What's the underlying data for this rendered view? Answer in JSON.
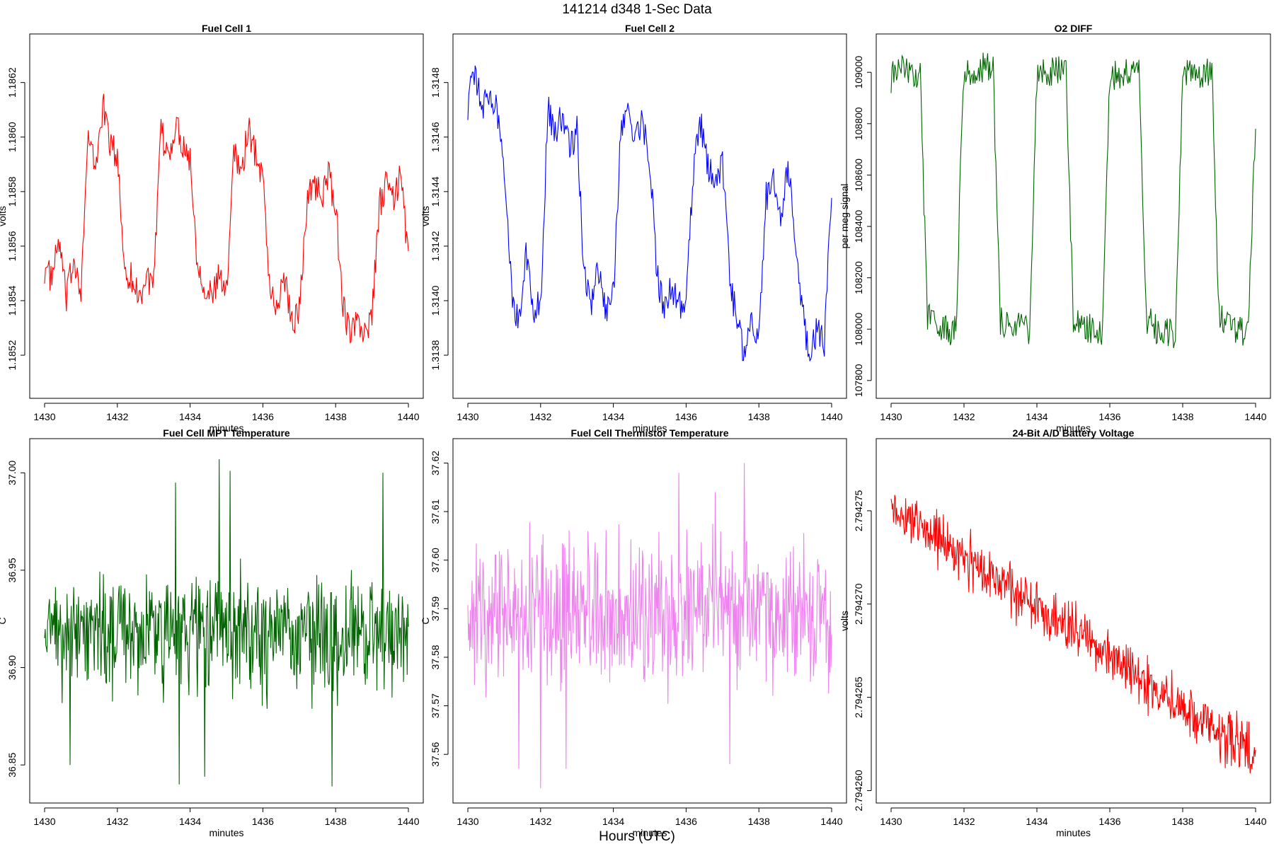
{
  "figure": {
    "title": "141214   d348   1-Sec Data",
    "footer": "Hours (UTC)"
  },
  "chart_data": [
    {
      "type": "line",
      "title": "Fuel Cell 1",
      "xlabel": "minutes",
      "ylabel": "volts",
      "color": "#ff0000",
      "xlim": [
        1430,
        1440
      ],
      "ylim": [
        1.18506,
        1.18636
      ],
      "xticks": [
        "1430",
        "1432",
        "1434",
        "1436",
        "1438",
        "1440"
      ],
      "yticks": [
        "1.1852",
        "1.1854",
        "1.1856",
        "1.1858",
        "1.1860",
        "1.1862"
      ],
      "x": [
        1430.0,
        1430.2,
        1430.4,
        1430.6,
        1430.8,
        1431.0,
        1431.2,
        1431.4,
        1431.6,
        1431.8,
        1432.0,
        1432.2,
        1432.4,
        1432.6,
        1432.8,
        1433.0,
        1433.2,
        1433.4,
        1433.6,
        1433.8,
        1434.0,
        1434.2,
        1434.4,
        1434.6,
        1434.8,
        1435.0,
        1435.2,
        1435.4,
        1435.6,
        1435.8,
        1436.0,
        1436.2,
        1436.4,
        1436.6,
        1436.8,
        1437.0,
        1437.2,
        1437.4,
        1437.6,
        1437.8,
        1438.0,
        1438.2,
        1438.4,
        1438.6,
        1438.8,
        1439.0,
        1439.2,
        1439.4,
        1439.6,
        1439.8,
        1440.0
      ],
      "y": [
        1.18552,
        1.18548,
        1.18562,
        1.1854,
        1.18556,
        1.18545,
        1.186,
        1.18588,
        1.18612,
        1.18598,
        1.18592,
        1.18552,
        1.18548,
        1.18541,
        1.18549,
        1.18545,
        1.18602,
        1.18592,
        1.18605,
        1.18598,
        1.18592,
        1.18554,
        1.18546,
        1.18541,
        1.18549,
        1.18542,
        1.18598,
        1.18586,
        1.18603,
        1.18594,
        1.18586,
        1.18543,
        1.18537,
        1.18549,
        1.18532,
        1.18536,
        1.18575,
        1.18584,
        1.18578,
        1.18586,
        1.18574,
        1.18539,
        1.18527,
        1.18532,
        1.18528,
        1.18534,
        1.18575,
        1.18583,
        1.18577,
        1.18586,
        1.18555
      ]
    },
    {
      "type": "line",
      "title": "Fuel Cell 2",
      "xlabel": "minutes",
      "ylabel": "volts",
      "color": "#0000ff",
      "xlim": [
        1430,
        1440
      ],
      "ylim": [
        1.31366,
        1.31496
      ],
      "xticks": [
        "1430",
        "1432",
        "1434",
        "1436",
        "1438",
        "1440"
      ],
      "yticks": [
        "1.3138",
        "1.3140",
        "1.3142",
        "1.3144",
        "1.3146",
        "1.3148"
      ],
      "x": [
        1430.0,
        1430.2,
        1430.4,
        1430.6,
        1430.8,
        1431.0,
        1431.2,
        1431.4,
        1431.6,
        1431.8,
        1432.0,
        1432.2,
        1432.4,
        1432.6,
        1432.8,
        1433.0,
        1433.2,
        1433.4,
        1433.6,
        1433.8,
        1434.0,
        1434.2,
        1434.4,
        1434.6,
        1434.8,
        1435.0,
        1435.2,
        1435.4,
        1435.6,
        1435.8,
        1436.0,
        1436.2,
        1436.4,
        1436.6,
        1436.8,
        1437.0,
        1437.2,
        1437.4,
        1437.6,
        1437.8,
        1438.0,
        1438.2,
        1438.4,
        1438.6,
        1438.8,
        1439.0,
        1439.2,
        1439.4,
        1439.6,
        1439.8,
        1440.0
      ],
      "y": [
        1.31472,
        1.31485,
        1.31468,
        1.31478,
        1.3147,
        1.3145,
        1.31405,
        1.3139,
        1.3142,
        1.31395,
        1.314,
        1.3147,
        1.31462,
        1.31468,
        1.31455,
        1.31462,
        1.31408,
        1.31398,
        1.31412,
        1.31396,
        1.31402,
        1.3146,
        1.31472,
        1.31458,
        1.31466,
        1.31452,
        1.3141,
        1.31395,
        1.31405,
        1.31398,
        1.31402,
        1.31448,
        1.31465,
        1.3145,
        1.3144,
        1.3145,
        1.31408,
        1.31392,
        1.3138,
        1.31395,
        1.31385,
        1.31438,
        1.31445,
        1.3143,
        1.31448,
        1.31425,
        1.31395,
        1.3138,
        1.3139,
        1.31385,
        1.31438
      ]
    },
    {
      "type": "line",
      "title": "O2 DIFF",
      "xlabel": "minutes",
      "ylabel": "per meg signal",
      "color": "#006400",
      "xlim": [
        1430,
        1440
      ],
      "ylim": [
        107750,
        109130
      ],
      "xticks": [
        "1430",
        "1432",
        "1434",
        "1436",
        "1438",
        "1440"
      ],
      "yticks": [
        "107800",
        "108000",
        "108200",
        "108400",
        "108600",
        "108800",
        "109000"
      ],
      "x": [
        1430.0,
        1430.3,
        1430.6,
        1430.8,
        1430.9,
        1431.0,
        1431.2,
        1431.4,
        1431.6,
        1431.8,
        1431.9,
        1432.0,
        1432.3,
        1432.6,
        1432.8,
        1432.9,
        1433.0,
        1433.3,
        1433.6,
        1433.8,
        1433.9,
        1434.0,
        1434.3,
        1434.6,
        1434.8,
        1434.9,
        1435.0,
        1435.3,
        1435.6,
        1435.8,
        1435.9,
        1436.0,
        1436.3,
        1436.6,
        1436.8,
        1436.9,
        1437.0,
        1437.3,
        1437.6,
        1437.8,
        1437.9,
        1438.0,
        1438.3,
        1438.6,
        1438.8,
        1438.9,
        1439.0,
        1439.3,
        1439.6,
        1439.8,
        1440.0
      ],
      "y": [
        108980,
        109010,
        109000,
        108990,
        108500,
        108050,
        108010,
        108000,
        107990,
        108020,
        108600,
        108980,
        109010,
        109020,
        109000,
        108500,
        108040,
        108010,
        108000,
        107990,
        108500,
        108990,
        109010,
        109000,
        109000,
        108500,
        108040,
        108010,
        108000,
        107990,
        108500,
        108970,
        109000,
        109010,
        109000,
        108500,
        108040,
        108000,
        107980,
        107990,
        108500,
        108980,
        109010,
        108990,
        109010,
        108500,
        108040,
        108000,
        107990,
        108010,
        108820
      ]
    },
    {
      "type": "line",
      "title": "Fuel Cell MPT Temperature",
      "xlabel": "minutes",
      "ylabel": "C",
      "color": "#006400",
      "xlim": [
        1430,
        1440
      ],
      "ylim": [
        36.833,
        37.015
      ],
      "xticks": [
        "1430",
        "1432",
        "1434",
        "1436",
        "1438",
        "1440"
      ],
      "yticks": [
        "36.85",
        "36.90",
        "36.95",
        "37.00"
      ],
      "baseline": 36.918,
      "noise": 0.025,
      "spikes_up": [
        [
          1433.6,
          36.995
        ],
        [
          1434.8,
          37.007
        ],
        [
          1435.1,
          37.001
        ],
        [
          1439.3,
          37.0
        ]
      ],
      "spikes_down": [
        [
          1430.7,
          36.85
        ],
        [
          1433.7,
          36.84
        ],
        [
          1434.4,
          36.844
        ],
        [
          1437.9,
          36.839
        ]
      ]
    },
    {
      "type": "line",
      "title": "Fuel Cell Thermistor Temperature",
      "xlabel": "minutes",
      "ylabel": "C",
      "color": "#ee82ee",
      "xlim": [
        1430,
        1440
      ],
      "ylim": [
        37.551,
        37.624
      ],
      "xticks": [
        "1430",
        "1432",
        "1434",
        "1436",
        "1438",
        "1440"
      ],
      "yticks": [
        "37.56",
        "37.57",
        "37.58",
        "37.59",
        "37.60",
        "37.61",
        "37.62"
      ],
      "baseline": 37.589,
      "noise": 0.012,
      "spikes_up": [
        [
          1437.6,
          37.62
        ],
        [
          1435.8,
          37.618
        ],
        [
          1436.8,
          37.614
        ]
      ],
      "spikes_down": [
        [
          1432.0,
          37.553
        ],
        [
          1431.4,
          37.557
        ],
        [
          1432.7,
          37.557
        ],
        [
          1437.2,
          37.558
        ]
      ]
    },
    {
      "type": "line",
      "title": "24-Bit A/D Battery Voltage",
      "xlabel": "minutes",
      "ylabel": "volts",
      "color": "#ff0000",
      "xlim": [
        1430,
        1440
      ],
      "ylim": [
        2.7942596,
        2.7942786
      ],
      "xticks": [
        "1430",
        "1432",
        "1434",
        "1436",
        "1438",
        "1440"
      ],
      "yticks": [
        "2.794260",
        "2.794265",
        "2.794270",
        "2.794275"
      ],
      "trend_start": 2.7942752,
      "trend_end": 2.7942618,
      "noise": 1.1e-06
    }
  ]
}
